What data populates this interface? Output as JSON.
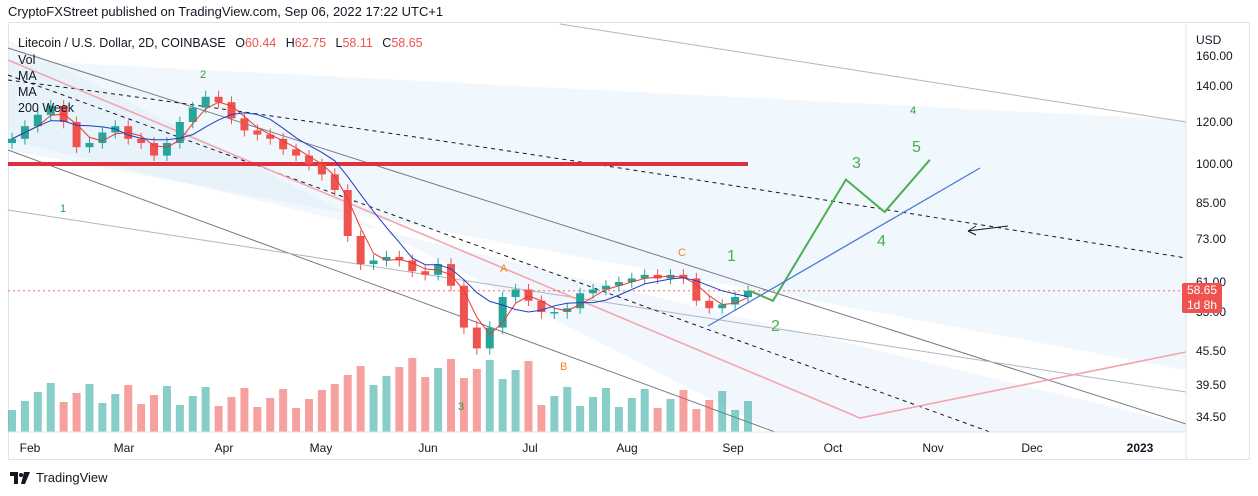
{
  "publisher_line": "CryptoFXStreet published on TradingView.com, Sep 06, 2022 17:22 UTC+1",
  "legend": {
    "symbol": "Litecoin / U.S. Dollar, 2D, COINBASE",
    "o_label": "O",
    "o_value": "60.44",
    "h_label": "H",
    "h_value": "62.75",
    "l_label": "L",
    "l_value": "58.11",
    "c_label": "C",
    "c_value": "58.65",
    "indicators": [
      "Vol",
      "MA",
      "MA",
      "200 Week"
    ]
  },
  "price_tag": {
    "price": "58.65",
    "countdown": "1d 8h"
  },
  "footer": {
    "brand": "TradingView"
  },
  "colors": {
    "up": "#26a69a",
    "down": "#ef5350",
    "resistance": "#e0303f",
    "forecast": "#4caf50",
    "wave_labels": "#ef8a1f",
    "blue_line": "#2962ff"
  },
  "chart_data": {
    "type": "candlestick",
    "currency": "USD",
    "y_ticks": [
      "160.00",
      "140.00",
      "120.00",
      "100.00",
      "85.00",
      "73.00",
      "61.00",
      "53.00",
      "45.50",
      "39.50",
      "34.50"
    ],
    "x_ticks": [
      "Feb",
      "Mar",
      "Apr",
      "May",
      "Jun",
      "Jul",
      "Aug",
      "Sep",
      "Oct",
      "Nov",
      "Dec",
      "2023"
    ],
    "last_close": 58.65,
    "resistance_level": 100,
    "approx_closes": [
      112,
      118,
      124,
      129,
      120,
      108,
      110,
      115,
      118,
      112,
      110,
      104,
      110,
      120,
      128,
      134,
      131,
      122,
      116,
      114,
      112,
      107,
      104,
      100,
      96,
      90,
      74,
      66,
      67,
      68,
      67,
      64,
      63,
      66,
      60,
      50,
      46,
      50,
      57,
      59,
      56,
      53,
      53,
      54,
      58,
      59,
      60,
      61,
      62,
      63,
      62,
      63,
      62,
      56,
      54,
      55,
      57,
      58.65
    ],
    "annotations": {
      "wave_labels": [
        "2",
        "1",
        "3",
        "A",
        "B",
        "C",
        "1",
        "2",
        "3",
        "4",
        "5",
        "4"
      ],
      "forecast_path": [
        {
          "date": "2022-09-06",
          "value": 58.65
        },
        {
          "date": "2022-09-13",
          "value": 56
        },
        {
          "date": "2022-10-05",
          "value": 94
        },
        {
          "date": "2022-10-17",
          "value": 82
        },
        {
          "date": "2022-10-31",
          "value": 102
        }
      ]
    }
  }
}
